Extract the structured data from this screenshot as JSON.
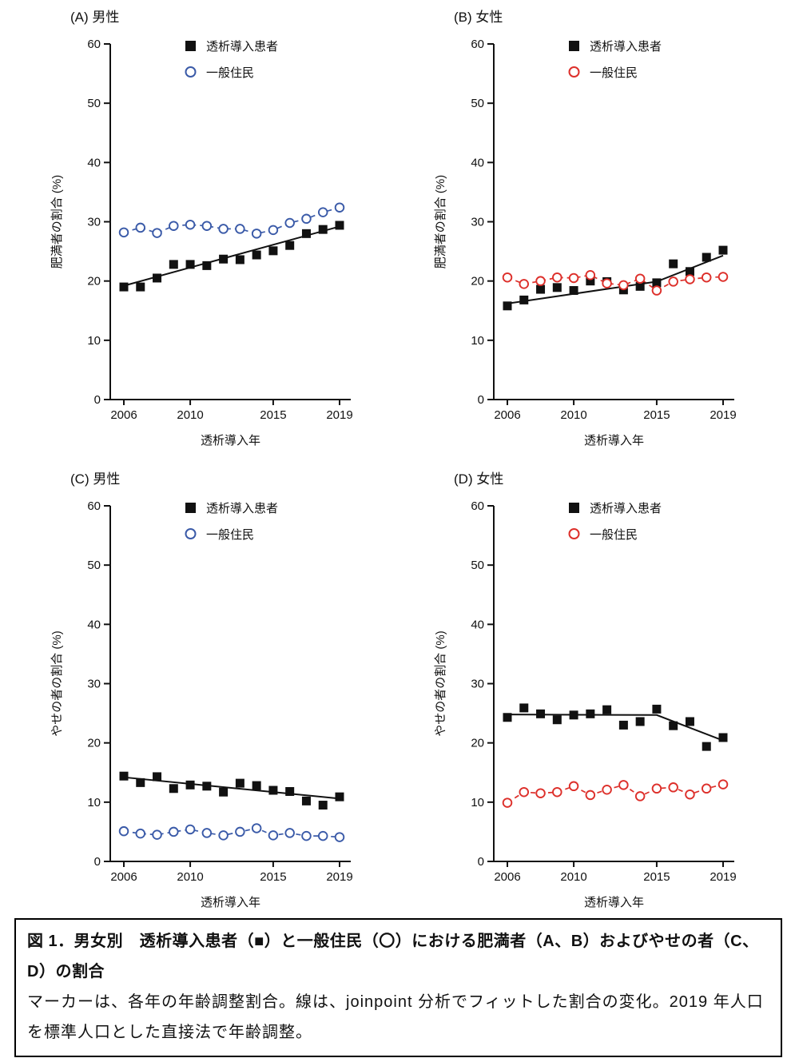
{
  "caption": {
    "title": "図 1．男女別　透析導入患者（■）と一般住民（〇）における肥満者（A、B）およびやせの者（C、D）の割合",
    "body": "マーカーは、各年の年齢調整割合。線は、joinpoint 分析でフィットした割合の変化。2019 年人口を標準人口とした直接法で年齢調整。"
  },
  "colors": {
    "patients": "#111111",
    "general_male": "#3a5aa8",
    "general_female": "#dd2f2a"
  },
  "chart_data": [
    {
      "id": "A",
      "type": "scatter",
      "title": "(A) 男性",
      "xlabel": "透析導入年",
      "ylabel": "肥満者の割合 (%)",
      "ylim": [
        0,
        60
      ],
      "yticks": [
        0,
        10,
        20,
        30,
        40,
        50,
        60
      ],
      "xticks": [
        2006,
        2010,
        2015,
        2019
      ],
      "x": [
        2006,
        2007,
        2008,
        2009,
        2010,
        2011,
        2012,
        2013,
        2014,
        2015,
        2016,
        2017,
        2018,
        2019
      ],
      "legend_position": "top-center",
      "grid": false,
      "series": [
        {
          "name": "透析導入患者",
          "marker": "filled-square",
          "color": "#111111",
          "values": [
            19.0,
            19.0,
            20.5,
            22.8,
            22.8,
            22.6,
            23.7,
            23.6,
            24.4,
            25.1,
            26.0,
            28.0,
            28.7,
            29.4
          ],
          "fit_line": {
            "style": "solid",
            "points": [
              [
                2006,
                19.2
              ],
              [
                2019,
                29.2
              ]
            ]
          }
        },
        {
          "name": "一般住民",
          "marker": "open-circle",
          "color": "#3a5aa8",
          "values": [
            28.2,
            29.0,
            28.1,
            29.3,
            29.5,
            29.3,
            28.8,
            28.8,
            28.0,
            28.6,
            29.8,
            30.5,
            31.6,
            32.4
          ],
          "fit_line": {
            "style": "dashed-through-points"
          }
        }
      ]
    },
    {
      "id": "B",
      "type": "scatter",
      "title": "(B) 女性",
      "xlabel": "透析導入年",
      "ylabel": "肥満者の割合 (%)",
      "ylim": [
        0,
        60
      ],
      "yticks": [
        0,
        10,
        20,
        30,
        40,
        50,
        60
      ],
      "xticks": [
        2006,
        2010,
        2015,
        2019
      ],
      "x": [
        2006,
        2007,
        2008,
        2009,
        2010,
        2011,
        2012,
        2013,
        2014,
        2015,
        2016,
        2017,
        2018,
        2019
      ],
      "legend_position": "top-center",
      "grid": false,
      "series": [
        {
          "name": "透析導入患者",
          "marker": "filled-square",
          "color": "#111111",
          "values": [
            15.8,
            16.8,
            18.6,
            18.9,
            18.4,
            20.0,
            19.9,
            18.5,
            19.1,
            19.7,
            22.9,
            21.6,
            24.0,
            25.2
          ],
          "fit_line": {
            "style": "solid",
            "points": [
              [
                2006,
                16.2
              ],
              [
                2015,
                19.9
              ],
              [
                2019,
                24.3
              ]
            ]
          }
        },
        {
          "name": "一般住民",
          "marker": "open-circle",
          "color": "#dd2f2a",
          "values": [
            20.6,
            19.5,
            20.0,
            20.6,
            20.5,
            21.0,
            19.6,
            19.3,
            20.4,
            18.4,
            19.9,
            20.3,
            20.6,
            20.7
          ],
          "fit_line": {
            "style": "dashed-through-points"
          }
        }
      ]
    },
    {
      "id": "C",
      "type": "scatter",
      "title": "(C) 男性",
      "xlabel": "透析導入年",
      "ylabel": "やせの者の割合 (%)",
      "ylim": [
        0,
        60
      ],
      "yticks": [
        0,
        10,
        20,
        30,
        40,
        50,
        60
      ],
      "xticks": [
        2006,
        2010,
        2015,
        2019
      ],
      "x": [
        2006,
        2007,
        2008,
        2009,
        2010,
        2011,
        2012,
        2013,
        2014,
        2015,
        2016,
        2017,
        2018,
        2019
      ],
      "legend_position": "top-center",
      "grid": false,
      "series": [
        {
          "name": "透析導入患者",
          "marker": "filled-square",
          "color": "#111111",
          "values": [
            14.4,
            13.3,
            14.3,
            12.3,
            12.9,
            12.7,
            11.7,
            13.2,
            12.8,
            12.0,
            11.8,
            10.2,
            9.5,
            10.9
          ],
          "fit_line": {
            "style": "solid",
            "points": [
              [
                2006,
                14.2
              ],
              [
                2019,
                10.6
              ]
            ]
          }
        },
        {
          "name": "一般住民",
          "marker": "open-circle",
          "color": "#3a5aa8",
          "values": [
            5.1,
            4.7,
            4.5,
            5.0,
            5.4,
            4.8,
            4.4,
            5.0,
            5.6,
            4.4,
            4.8,
            4.3,
            4.3,
            4.1
          ],
          "fit_line": {
            "style": "dashed-through-points"
          }
        }
      ]
    },
    {
      "id": "D",
      "type": "scatter",
      "title": "(D) 女性",
      "xlabel": "透析導入年",
      "ylabel": "やせの者の割合 (%)",
      "ylim": [
        0,
        60
      ],
      "yticks": [
        0,
        10,
        20,
        30,
        40,
        50,
        60
      ],
      "xticks": [
        2006,
        2010,
        2015,
        2019
      ],
      "x": [
        2006,
        2007,
        2008,
        2009,
        2010,
        2011,
        2012,
        2013,
        2014,
        2015,
        2016,
        2017,
        2018,
        2019
      ],
      "legend_position": "top-center",
      "grid": false,
      "series": [
        {
          "name": "透析導入患者",
          "marker": "filled-square",
          "color": "#111111",
          "values": [
            24.3,
            25.9,
            24.9,
            23.9,
            24.7,
            24.9,
            25.6,
            23.0,
            23.6,
            25.7,
            22.9,
            23.6,
            19.4,
            20.9
          ],
          "fit_line": {
            "style": "solid",
            "points": [
              [
                2006,
                24.8
              ],
              [
                2015,
                24.7
              ],
              [
                2019,
                20.4
              ]
            ]
          }
        },
        {
          "name": "一般住民",
          "marker": "open-circle",
          "color": "#dd2f2a",
          "values": [
            9.9,
            11.7,
            11.5,
            11.7,
            12.7,
            11.2,
            12.1,
            12.9,
            11.0,
            12.3,
            12.5,
            11.3,
            12.3,
            13.0
          ],
          "fit_line": {
            "style": "dashed-through-points"
          }
        }
      ]
    }
  ]
}
